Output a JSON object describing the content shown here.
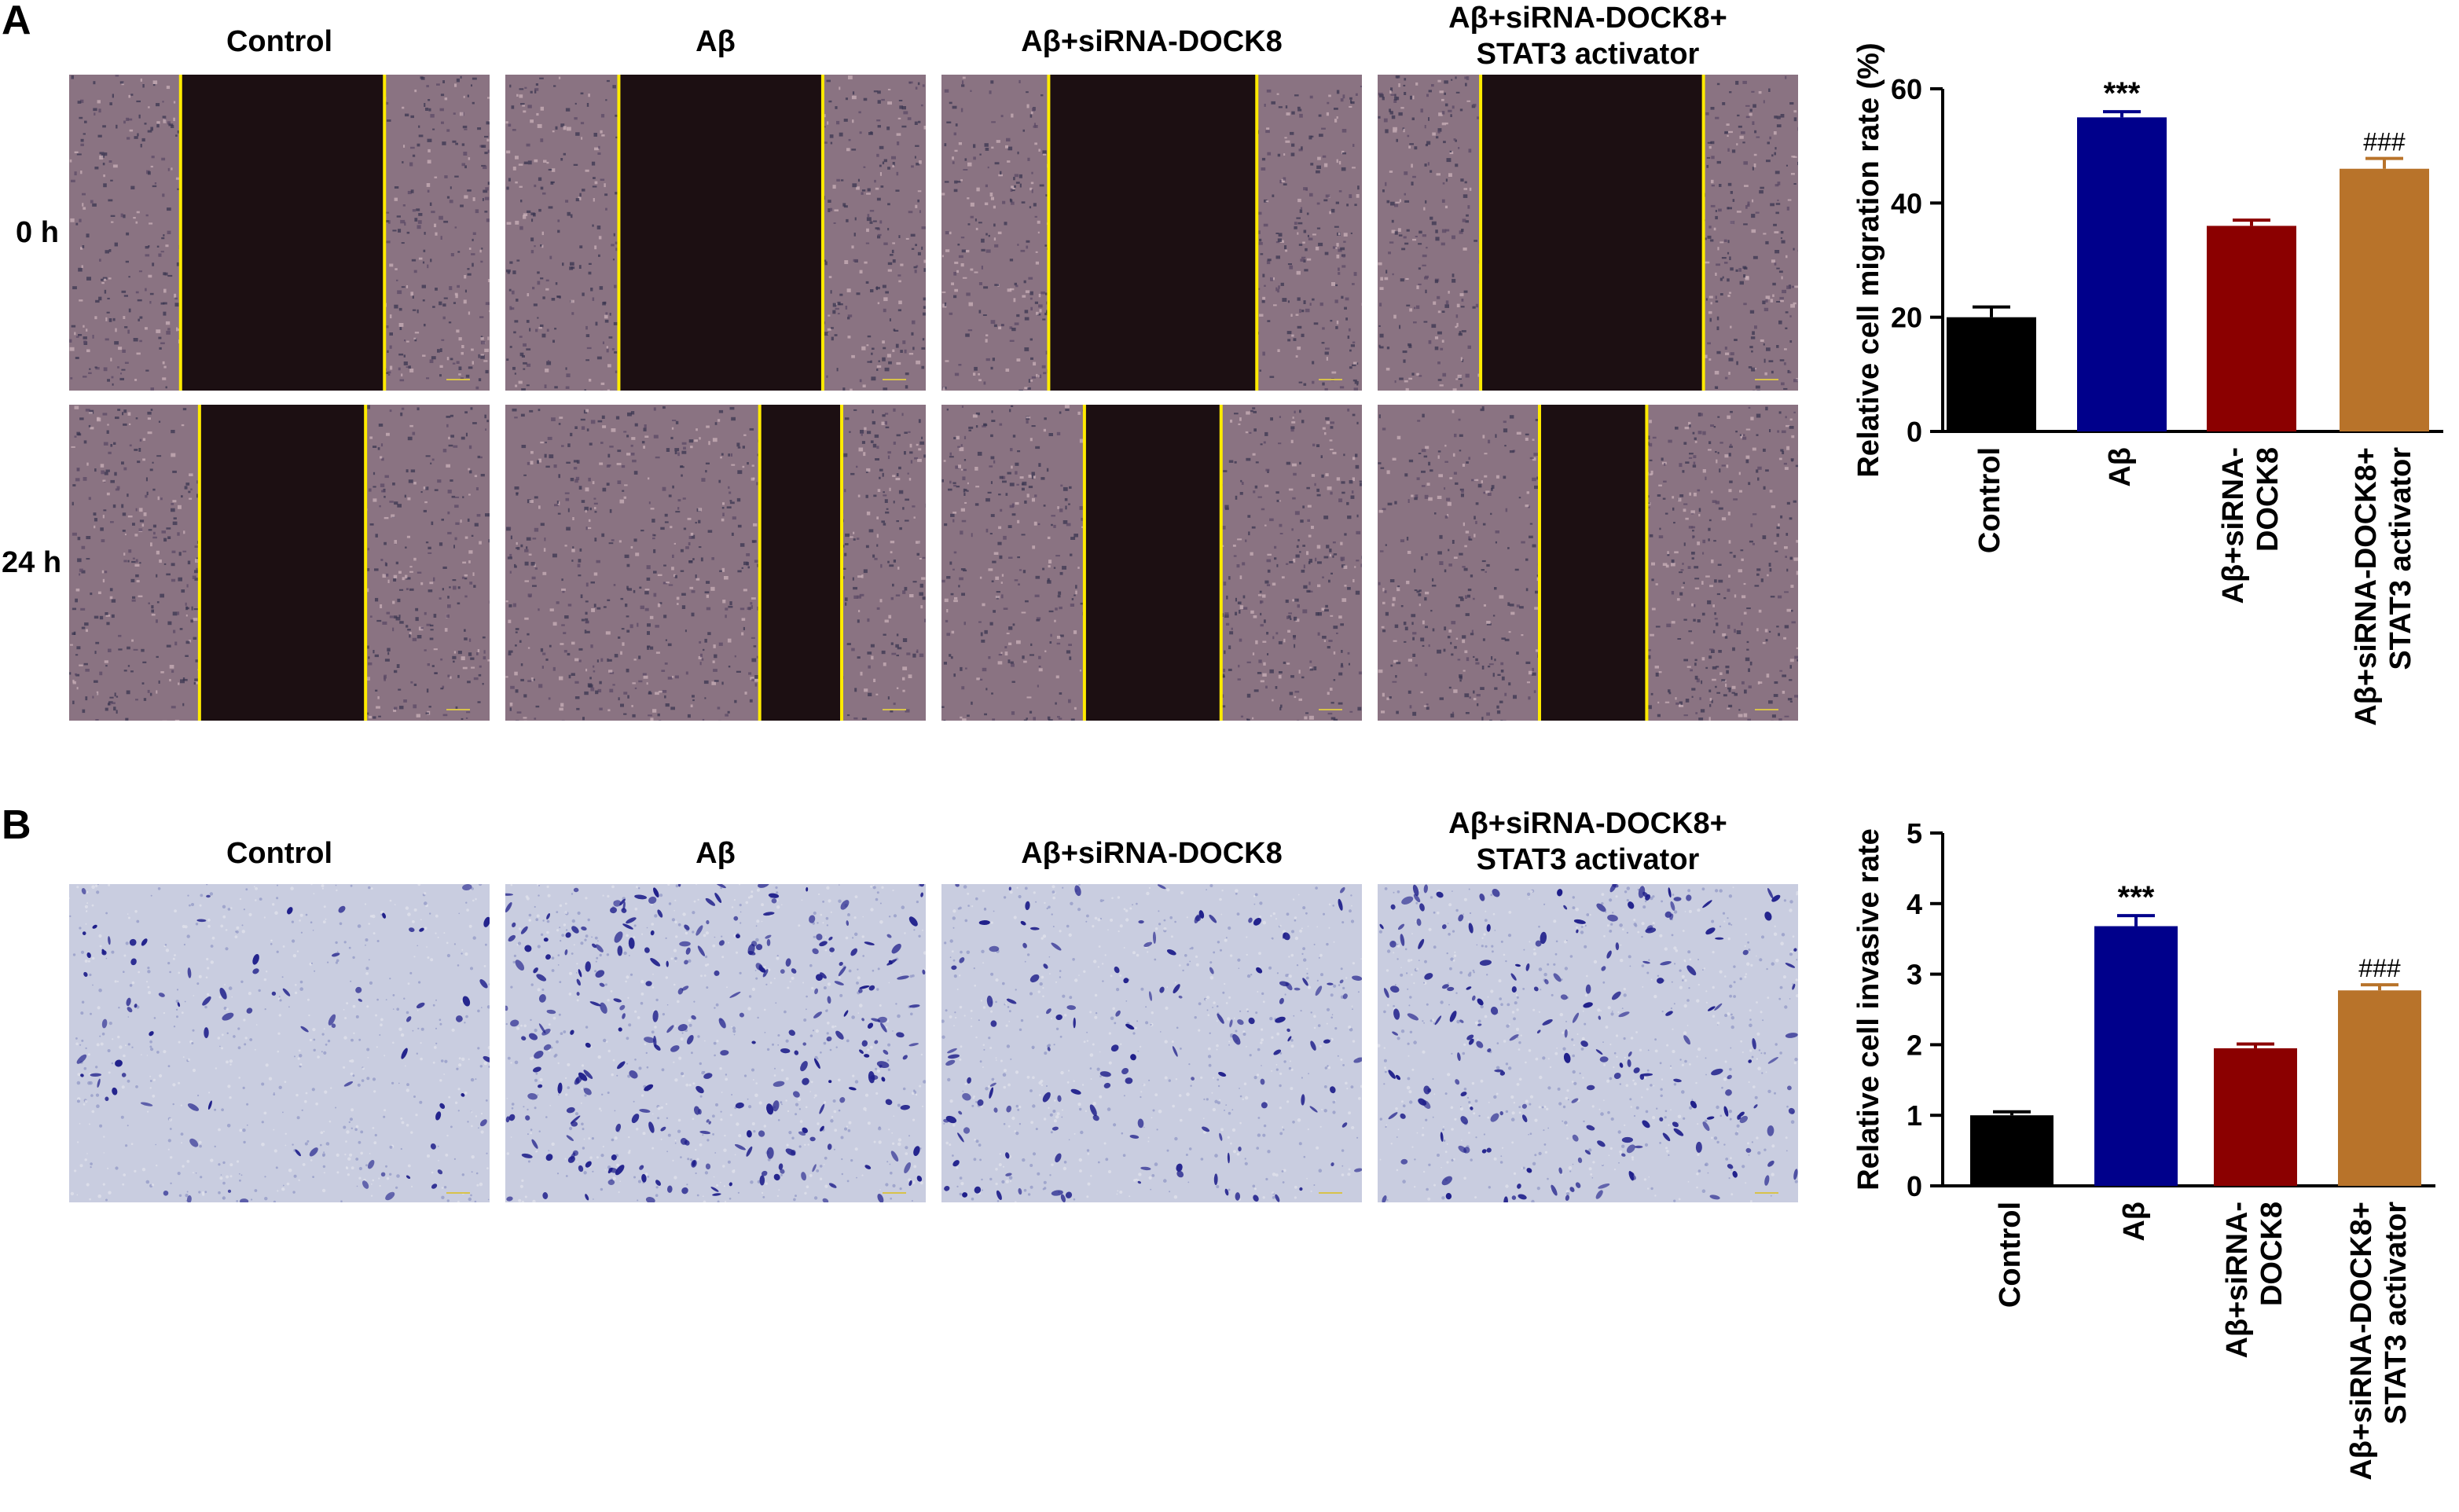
{
  "panels": {
    "A": {
      "letter": "A",
      "columns": [
        "Control",
        "Aβ",
        "Aβ+siRNA-DOCK8",
        "Aβ+siRNA-DOCK8+\nSTAT3 activator"
      ],
      "rows": [
        "0 h",
        "24 h"
      ]
    },
    "B": {
      "letter": "B",
      "columns": [
        "Control",
        "Aβ",
        "Aβ+siRNA-DOCK8",
        "Aβ+siRNA-DOCK8+\nSTAT3 activator"
      ]
    }
  },
  "colors": {
    "Control": "#000000",
    "Aβ": "#00008B",
    "Aβ+siRNA-DOCK8": "#8B0000",
    "Aβ+siRNA-DOCK8+ STAT3 activator": "#B8732A",
    "wound_line": "#FFEB00",
    "wound_gap": "#1c0f12",
    "wound_cells": "#8a7382",
    "transwell_bg": "#c9cde0",
    "transwell_cells": "#1e1e8a"
  },
  "chart_data": [
    {
      "type": "bar",
      "categories": [
        "Control",
        "Aβ",
        "Aβ+siRNA-\nDOCK8",
        "Aβ+siRNA-DOCK8+\nSTAT3 activator"
      ],
      "values": [
        20,
        55,
        36,
        46
      ],
      "errors": [
        1.8,
        1.0,
        1.0,
        1.8
      ],
      "annotations": [
        "",
        "***",
        "",
        "###"
      ],
      "ylabel": "Relative cell migration rate (%)",
      "ylim": [
        0,
        60
      ],
      "yticks": [
        0,
        20,
        40,
        60
      ],
      "grid": false,
      "legend": "none"
    },
    {
      "type": "bar",
      "categories": [
        "Control",
        "Aβ",
        "Aβ+siRNA-\nDOCK8",
        "Aβ+siRNA-DOCK8+\nSTAT3 activator"
      ],
      "values": [
        1.0,
        3.68,
        1.95,
        2.77
      ],
      "errors": [
        0.05,
        0.15,
        0.06,
        0.08
      ],
      "annotations": [
        "",
        "***",
        "",
        "###"
      ],
      "ylabel": "Relative cell invasive rate",
      "ylim": [
        0,
        5
      ],
      "yticks": [
        0,
        1,
        2,
        3,
        4,
        5
      ],
      "grid": false,
      "legend": "none"
    }
  ]
}
